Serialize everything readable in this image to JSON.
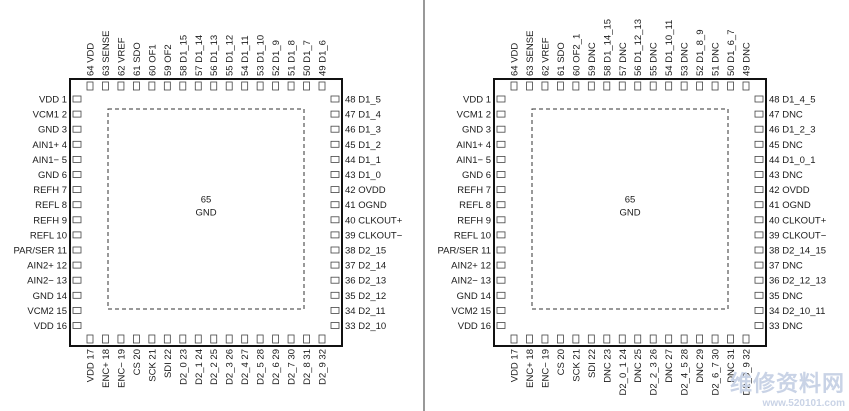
{
  "divider_color": "#555555",
  "packages": [
    {
      "center_number": "65",
      "center_name": "GND",
      "left_pins": [
        "VDD 1",
        "VCM1 2",
        "GND 3",
        "AIN1+ 4",
        "AIN1− 5",
        "GND 6",
        "REFH 7",
        "REFL 8",
        "REFH 9",
        "REFL 10",
        "PAR/SER 11",
        "AIN2+ 12",
        "AIN2− 13",
        "GND 14",
        "VCM2 15",
        "VDD 16"
      ],
      "right_pins": [
        "48 D1_5",
        "47 D1_4",
        "46 D1_3",
        "45 D1_2",
        "44 D1_1",
        "43 D1_0",
        "42 OVDD",
        "41 OGND",
        "40 CLKOUT+",
        "39 CLKOUT−",
        "38 D2_15",
        "37 D2_14",
        "36 D2_13",
        "35 D2_12",
        "34 D2_11",
        "33 D2_10"
      ],
      "top_pins": [
        "64 VDD",
        "63 SENSE",
        "62 VREF",
        "61 SDO",
        "60 OF1",
        "59 OF2",
        "58 D1_15",
        "57 D1_14",
        "56 D1_13",
        "55 D1_12",
        "54 D1_11",
        "53 D1_10",
        "52 D1_9",
        "51 D1_8",
        "50 D1_7",
        "49 D1_6"
      ],
      "bottom_pins": [
        "VDD 17",
        "ENC+ 18",
        "ENC− 19",
        "CS 20",
        "SCK 21",
        "SDI 22",
        "D2_0 23",
        "D2_1 24",
        "D2_2 25",
        "D2_3 26",
        "D2_4 27",
        "D2_5 28",
        "D2_6 29",
        "D2_7 30",
        "D2_8 31",
        "D2_9 32"
      ]
    },
    {
      "center_number": "65",
      "center_name": "GND",
      "left_pins": [
        "VDD 1",
        "VCM1 2",
        "GND 3",
        "AIN1+ 4",
        "AIN1− 5",
        "GND 6",
        "REFH 7",
        "REFL 8",
        "REFH 9",
        "REFL 10",
        "PAR/SER 11",
        "AIN2+ 12",
        "AIN2− 13",
        "GND 14",
        "VCM2 15",
        "VDD 16"
      ],
      "right_pins": [
        "48 D1_4_5",
        "47 DNC",
        "46 D1_2_3",
        "45 DNC",
        "44 D1_0_1",
        "43 DNC",
        "42 OVDD",
        "41 OGND",
        "40 CLKOUT+",
        "39 CLKOUT−",
        "38 D2_14_15",
        "37 DNC",
        "36 D2_12_13",
        "35 DNC",
        "34 D2_10_11",
        "33 DNC"
      ],
      "top_pins": [
        "64 VDD",
        "63 SENSE",
        "62 VREF",
        "61 SDO",
        "60 OF2_1",
        "59 DNC",
        "58 D1_14_15",
        "57 DNC",
        "56 D1_12_13",
        "55 DNC",
        "54 D1_10_11",
        "53 DNC",
        "52 D1_8_9",
        "51 DNC",
        "50 D1_6_7",
        "49 DNC"
      ],
      "bottom_pins": [
        "VDD 17",
        "ENC+ 18",
        "ENC− 19",
        "CS 20",
        "SCK 21",
        "SDI 22",
        "DNC 23",
        "D2_0_1 24",
        "DNC 25",
        "D2_2_3 26",
        "DNC 27",
        "D2_4_5 28",
        "DNC 29",
        "D2_6_7 30",
        "DNC 31",
        "D2_8_9 32"
      ]
    }
  ],
  "watermark": {
    "main": "维修资料网",
    "sub": "www.520101.com"
  }
}
